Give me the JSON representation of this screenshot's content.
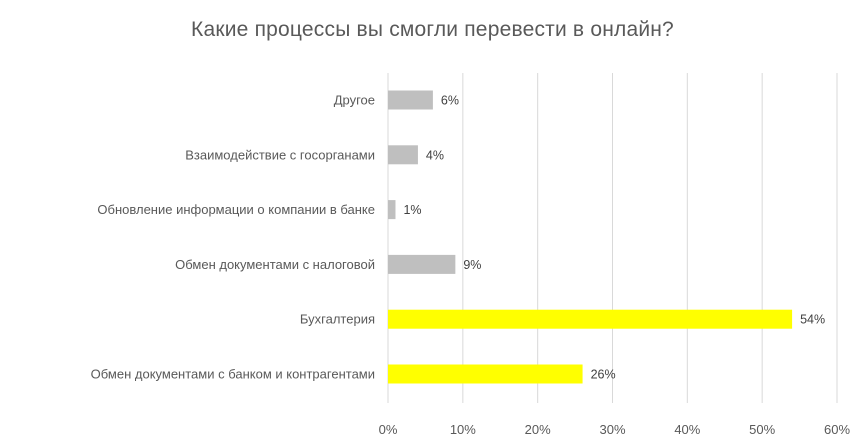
{
  "chart_data": {
    "type": "bar",
    "orientation": "horizontal",
    "title": "Какие процессы вы смогли перевести в онлайн?",
    "categories": [
      "Другое",
      "Взаимодействие с госорганами",
      "Обновление информации о компании в банке",
      "Обмен документами с налоговой",
      "Бухгалтерия",
      "Обмен документами с банком и контрагентами"
    ],
    "values": [
      6,
      4,
      1,
      9,
      54,
      26
    ],
    "data_labels": [
      "6%",
      "4%",
      "1%",
      "9%",
      "54%",
      "26%"
    ],
    "colors": [
      "#bfbfbf",
      "#bfbfbf",
      "#bfbfbf",
      "#bfbfbf",
      "#ffff00",
      "#ffff00"
    ],
    "xlim": [
      0,
      60
    ],
    "x_ticks": [
      0,
      10,
      20,
      30,
      40,
      50,
      60
    ],
    "x_tick_labels": [
      "0%",
      "10%",
      "20%",
      "30%",
      "40%",
      "50%",
      "60%"
    ],
    "grid": true,
    "gridline_color": "#d9d9d9",
    "legend": "none"
  }
}
